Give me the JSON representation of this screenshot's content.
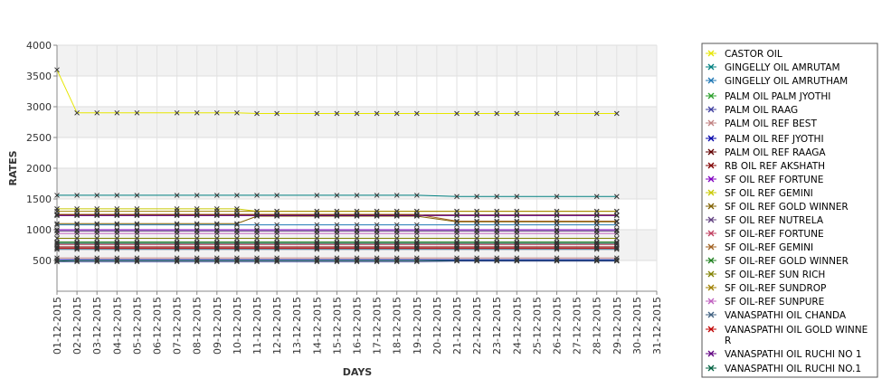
{
  "chart_data": {
    "type": "line",
    "title": "",
    "xlabel": "DAYS",
    "ylabel": "RATES",
    "ylim": [
      0,
      4000
    ],
    "yticks": [
      500,
      1000,
      1500,
      2000,
      2500,
      3000,
      3500,
      4000
    ],
    "grid": true,
    "legend_position": "right",
    "categories": [
      "01-12-2015",
      "02-12-2015",
      "03-12-2015",
      "04-12-2015",
      "05-12-2015",
      "06-12-2015",
      "07-12-2015",
      "08-12-2015",
      "09-12-2015",
      "10-12-2015",
      "11-12-2015",
      "12-12-2015",
      "13-12-2015",
      "14-12-2015",
      "15-12-2015",
      "16-12-2015",
      "17-12-2015",
      "18-12-2015",
      "19-12-2015",
      "20-12-2015",
      "21-12-2015",
      "22-12-2015",
      "23-12-2015",
      "24-12-2015",
      "25-12-2015",
      "26-12-2015",
      "27-12-2015",
      "28-12-2015",
      "29-12-2015",
      "30-12-2015",
      "31-12-2015"
    ],
    "series": [
      {
        "name": "CASTOR OIL",
        "color": "#e6e600",
        "values": [
          3600,
          2900,
          2900,
          2900,
          2900,
          null,
          2900,
          2900,
          2900,
          2900,
          2890,
          2890,
          null,
          2890,
          2890,
          2890,
          2890,
          2890,
          2890,
          null,
          2890,
          2890,
          2890,
          2890,
          null,
          2890,
          null,
          2890,
          2890,
          null,
          null
        ]
      },
      {
        "name": "GINGELLY OIL AMRUTAM",
        "color": "#008080",
        "values": [
          1560,
          1560,
          1560,
          1560,
          1560,
          null,
          1560,
          1560,
          1560,
          1560,
          1560,
          1560,
          null,
          1560,
          1560,
          1560,
          1560,
          1560,
          1560,
          null,
          1540,
          1540,
          1540,
          1540,
          null,
          1540,
          null,
          1540,
          1540,
          null,
          null
        ]
      },
      {
        "name": "GINGELLY OIL AMRUTHAM",
        "color": "#1f77b4",
        "values": [
          1080,
          1080,
          1080,
          1080,
          1080,
          null,
          1080,
          1080,
          1080,
          1080,
          1080,
          1080,
          null,
          1080,
          1080,
          1080,
          1080,
          1080,
          1080,
          null,
          1080,
          1080,
          1080,
          1080,
          null,
          1080,
          null,
          1080,
          1080,
          null,
          null
        ]
      },
      {
        "name": "PALM OIL PALM JYOTHI",
        "color": "#2ca02c",
        "values": [
          490,
          500,
          500,
          500,
          500,
          null,
          500,
          500,
          500,
          500,
          500,
          500,
          null,
          500,
          500,
          500,
          500,
          500,
          500,
          null,
          500,
          500,
          500,
          500,
          null,
          500,
          null,
          500,
          500,
          null,
          null
        ]
      },
      {
        "name": "PALM OIL RAAG",
        "color": "#4040a0",
        "values": [
          480,
          480,
          480,
          480,
          480,
          null,
          480,
          480,
          480,
          480,
          480,
          480,
          null,
          480,
          480,
          480,
          480,
          480,
          480,
          null,
          490,
          490,
          490,
          490,
          null,
          490,
          null,
          490,
          490,
          null,
          null
        ]
      },
      {
        "name": "PALM OIL REF BEST",
        "color": "#c08080",
        "values": [
          540,
          540,
          540,
          540,
          540,
          null,
          540,
          540,
          540,
          540,
          540,
          540,
          null,
          540,
          540,
          540,
          540,
          540,
          540,
          null,
          540,
          540,
          540,
          540,
          null,
          540,
          null,
          540,
          540,
          null,
          null
        ]
      },
      {
        "name": "PALM OIL REF JYOTHI",
        "color": "#0000aa",
        "values": [
          510,
          510,
          510,
          510,
          510,
          null,
          510,
          510,
          510,
          510,
          510,
          510,
          null,
          510,
          510,
          510,
          510,
          510,
          510,
          null,
          510,
          510,
          510,
          510,
          null,
          510,
          null,
          510,
          510,
          null,
          null
        ]
      },
      {
        "name": "PALM OIL REF RAAGA",
        "color": "#600000",
        "values": [
          1240,
          1240,
          1240,
          1240,
          1240,
          null,
          1240,
          1240,
          1240,
          1240,
          1240,
          1240,
          null,
          1240,
          1240,
          1240,
          1240,
          1240,
          1240,
          null,
          1240,
          1240,
          1240,
          1240,
          null,
          1240,
          null,
          1240,
          1240,
          null,
          null
        ]
      },
      {
        "name": "RB OIL REF AKSHATH",
        "color": "#800000",
        "values": [
          720,
          720,
          720,
          720,
          720,
          null,
          720,
          720,
          720,
          720,
          720,
          720,
          null,
          720,
          720,
          720,
          720,
          720,
          720,
          null,
          720,
          720,
          720,
          720,
          null,
          720,
          null,
          720,
          720,
          null,
          null
        ]
      },
      {
        "name": "SF OIL REF FORTUNE",
        "color": "#8000c0",
        "values": [
          1000,
          1000,
          1000,
          1000,
          1000,
          null,
          1000,
          1000,
          1000,
          1000,
          1000,
          1000,
          null,
          1000,
          1000,
          1000,
          1000,
          1000,
          1000,
          null,
          1000,
          1000,
          1000,
          1000,
          null,
          1000,
          null,
          1000,
          1000,
          null,
          null
        ]
      },
      {
        "name": "SF OIL REF GEMINI",
        "color": "#c8c800",
        "values": [
          1340,
          1340,
          1340,
          1340,
          1340,
          null,
          1340,
          1340,
          1340,
          1340,
          1300,
          1300,
          null,
          1300,
          1300,
          1300,
          1300,
          1300,
          1300,
          null,
          1300,
          1300,
          1300,
          1300,
          null,
          1300,
          null,
          1300,
          1300,
          null,
          null
        ]
      },
      {
        "name": "SF OIL REF GOLD WINNER",
        "color": "#806000",
        "values": [
          1100,
          1100,
          1100,
          1100,
          1100,
          null,
          1100,
          1100,
          1100,
          1100,
          1220,
          1220,
          null,
          1220,
          1220,
          1220,
          1220,
          1220,
          1220,
          null,
          1130,
          1130,
          1130,
          1130,
          null,
          1130,
          null,
          1130,
          1130,
          null,
          null
        ]
      },
      {
        "name": "SF OIL REF NUTRELA",
        "color": "#604080",
        "values": [
          980,
          980,
          980,
          980,
          980,
          null,
          980,
          980,
          980,
          980,
          980,
          980,
          null,
          980,
          980,
          980,
          980,
          980,
          980,
          null,
          980,
          980,
          980,
          980,
          null,
          980,
          null,
          980,
          980,
          null,
          null
        ]
      },
      {
        "name": "SF OIL-REF FORTUNE",
        "color": "#c04060",
        "values": [
          760,
          760,
          760,
          760,
          760,
          null,
          760,
          760,
          760,
          760,
          760,
          760,
          null,
          760,
          760,
          760,
          760,
          760,
          760,
          null,
          760,
          760,
          760,
          760,
          null,
          760,
          null,
          760,
          760,
          null,
          null
        ]
      },
      {
        "name": "SF OIL-REF GEMINI",
        "color": "#a06020",
        "values": [
          1250,
          1250,
          1250,
          1250,
          1250,
          null,
          1250,
          1250,
          1250,
          1250,
          1250,
          1250,
          null,
          1250,
          1250,
          1250,
          1250,
          1250,
          1250,
          null,
          1140,
          1140,
          1140,
          1140,
          null,
          1140,
          null,
          1140,
          1140,
          null,
          null
        ]
      },
      {
        "name": "SF OIL-REF GOLD WINNER",
        "color": "#208020",
        "values": [
          800,
          800,
          800,
          800,
          800,
          null,
          800,
          800,
          800,
          800,
          800,
          800,
          null,
          800,
          800,
          800,
          800,
          800,
          800,
          null,
          800,
          800,
          800,
          800,
          null,
          800,
          null,
          800,
          800,
          null,
          null
        ]
      },
      {
        "name": "SF OIL-REF SUN RICH",
        "color": "#808000",
        "values": [
          860,
          860,
          860,
          860,
          860,
          null,
          860,
          860,
          860,
          860,
          860,
          860,
          null,
          860,
          860,
          860,
          860,
          860,
          860,
          null,
          860,
          860,
          860,
          860,
          null,
          860,
          null,
          860,
          860,
          null,
          null
        ]
      },
      {
        "name": "SF OIL-REF SUNDROP",
        "color": "#a08000",
        "values": [
          1300,
          1300,
          1300,
          1300,
          1300,
          null,
          1300,
          1300,
          1300,
          1300,
          1300,
          1300,
          null,
          1300,
          1300,
          1300,
          1300,
          1300,
          1300,
          null,
          1300,
          1300,
          1300,
          1300,
          null,
          1300,
          null,
          1300,
          1300,
          null,
          null
        ]
      },
      {
        "name": "SF OIL-REF SUNPURE",
        "color": "#c060c0",
        "values": [
          940,
          940,
          940,
          940,
          940,
          null,
          940,
          940,
          940,
          940,
          940,
          940,
          null,
          940,
          940,
          940,
          940,
          940,
          940,
          null,
          940,
          940,
          940,
          940,
          null,
          940,
          null,
          940,
          940,
          null,
          null
        ]
      },
      {
        "name": "VANASPATHI OIL CHANDA",
        "color": "#406080",
        "values": [
          680,
          680,
          680,
          680,
          680,
          null,
          680,
          680,
          680,
          680,
          680,
          680,
          null,
          680,
          680,
          680,
          680,
          680,
          680,
          null,
          680,
          680,
          680,
          680,
          null,
          680,
          null,
          680,
          680,
          null,
          null
        ]
      },
      {
        "name": "VANASPATHI OIL GOLD WINNER",
        "color": "#c00000",
        "values": [
          700,
          700,
          700,
          700,
          700,
          null,
          700,
          700,
          700,
          700,
          700,
          700,
          null,
          700,
          700,
          700,
          700,
          700,
          700,
          null,
          700,
          700,
          700,
          700,
          null,
          700,
          null,
          700,
          700,
          null,
          null
        ]
      },
      {
        "name": "VANASPATHI OIL RUCHI NO 1",
        "color": "#600080",
        "values": [
          1230,
          1230,
          1230,
          1230,
          1230,
          null,
          1230,
          1230,
          1230,
          1230,
          1230,
          1230,
          null,
          1230,
          1230,
          1230,
          1230,
          1230,
          1230,
          null,
          1230,
          1230,
          1230,
          1230,
          null,
          1230,
          null,
          1230,
          1230,
          null,
          null
        ]
      },
      {
        "name": "VANASPATHI OIL RUCHI NO.1",
        "color": "#006040",
        "values": [
          780,
          780,
          780,
          780,
          780,
          null,
          780,
          780,
          780,
          780,
          780,
          780,
          null,
          780,
          780,
          780,
          780,
          780,
          780,
          null,
          780,
          780,
          780,
          780,
          null,
          780,
          null,
          780,
          780,
          null,
          null
        ]
      }
    ]
  }
}
